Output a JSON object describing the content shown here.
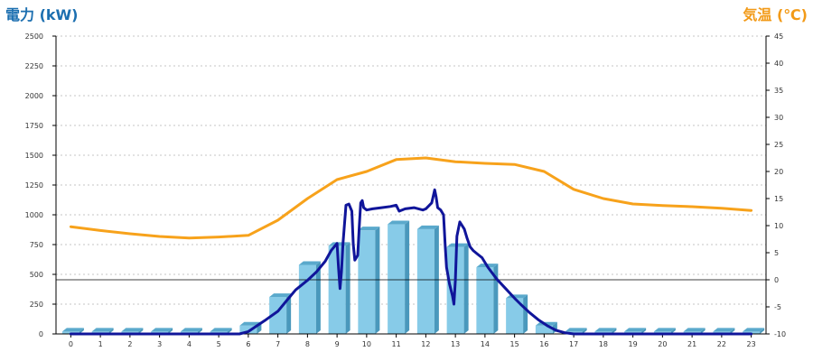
{
  "chart_data": {
    "type": "bar",
    "title": "",
    "left_axis": {
      "label": "電力 (kW)",
      "min": 0,
      "max": 2500,
      "step": 250,
      "ticks": [
        "0",
        "250",
        "500",
        "750",
        "1000",
        "1250",
        "1500",
        "1750",
        "2000",
        "2250",
        "2500"
      ]
    },
    "right_axis": {
      "label": "気温 (℃)",
      "min": -10,
      "max": 45,
      "step": 5,
      "ticks": [
        "-10",
        "-5",
        "0",
        "5",
        "10",
        "15",
        "20",
        "25",
        "30",
        "35",
        "40",
        "45"
      ]
    },
    "categories": [
      "0",
      "1",
      "2",
      "3",
      "4",
      "5",
      "6",
      "7",
      "8",
      "9",
      "10",
      "11",
      "12",
      "13",
      "14",
      "15",
      "16",
      "17",
      "18",
      "19",
      "20",
      "21",
      "22",
      "23"
    ],
    "grid": true,
    "series": [
      {
        "kind": "bar",
        "axis": "left",
        "color": "#87cbe8",
        "values": [
          20,
          20,
          20,
          20,
          20,
          20,
          70,
          310,
          580,
          740,
          870,
          920,
          880,
          730,
          560,
          300,
          70,
          20,
          20,
          20,
          20,
          20,
          20,
          20
        ]
      },
      {
        "kind": "line",
        "axis": "left",
        "color": "#10159a",
        "x": [
          0,
          3,
          5.7,
          6,
          6.3,
          6.6,
          7,
          7.3,
          7.6,
          8,
          8.3,
          8.6,
          8.8,
          9,
          9.05,
          9.1,
          9.15,
          9.2,
          9.3,
          9.4,
          9.5,
          9.55,
          9.6,
          9.7,
          9.75,
          9.8,
          9.85,
          9.9,
          10,
          10.2,
          10.5,
          10.8,
          11,
          11.1,
          11.3,
          11.6,
          11.9,
          12,
          12.2,
          12.3,
          12.35,
          12.4,
          12.5,
          12.6,
          12.65,
          12.7,
          12.8,
          12.9,
          12.95,
          13,
          13.05,
          13.15,
          13.3,
          13.4,
          13.5,
          13.6,
          13.75,
          13.9,
          14.1,
          14.4,
          14.7,
          15,
          15.2,
          15.5,
          15.8,
          16.1,
          16.4,
          16.7,
          17,
          23
        ],
        "values": [
          0,
          0,
          0,
          20,
          70,
          120,
          190,
          280,
          370,
          450,
          520,
          610,
          700,
          760,
          550,
          380,
          520,
          760,
          1080,
          1090,
          1030,
          750,
          620,
          660,
          900,
          1100,
          1120,
          1060,
          1040,
          1050,
          1060,
          1070,
          1080,
          1030,
          1050,
          1060,
          1040,
          1050,
          1100,
          1210,
          1150,
          1060,
          1040,
          1000,
          760,
          560,
          420,
          320,
          250,
          450,
          820,
          940,
          880,
          800,
          730,
          700,
          670,
          640,
          560,
          460,
          380,
          300,
          250,
          180,
          120,
          70,
          30,
          10,
          0,
          0
        ]
      },
      {
        "kind": "line",
        "axis": "right",
        "color": "#f7a21b",
        "x": [
          0,
          1,
          2,
          3,
          4,
          5,
          6,
          7,
          8,
          9,
          10,
          11,
          12,
          13,
          14,
          15,
          16,
          17,
          18,
          19,
          20,
          21,
          22,
          23
        ],
        "values": [
          9.8,
          9.1,
          8.5,
          8.0,
          7.7,
          7.9,
          8.2,
          11.0,
          15.0,
          18.5,
          20.0,
          22.2,
          22.5,
          21.8,
          21.5,
          21.3,
          20.0,
          16.7,
          15.0,
          14.0,
          13.7,
          13.5,
          13.2,
          12.8
        ]
      }
    ]
  }
}
